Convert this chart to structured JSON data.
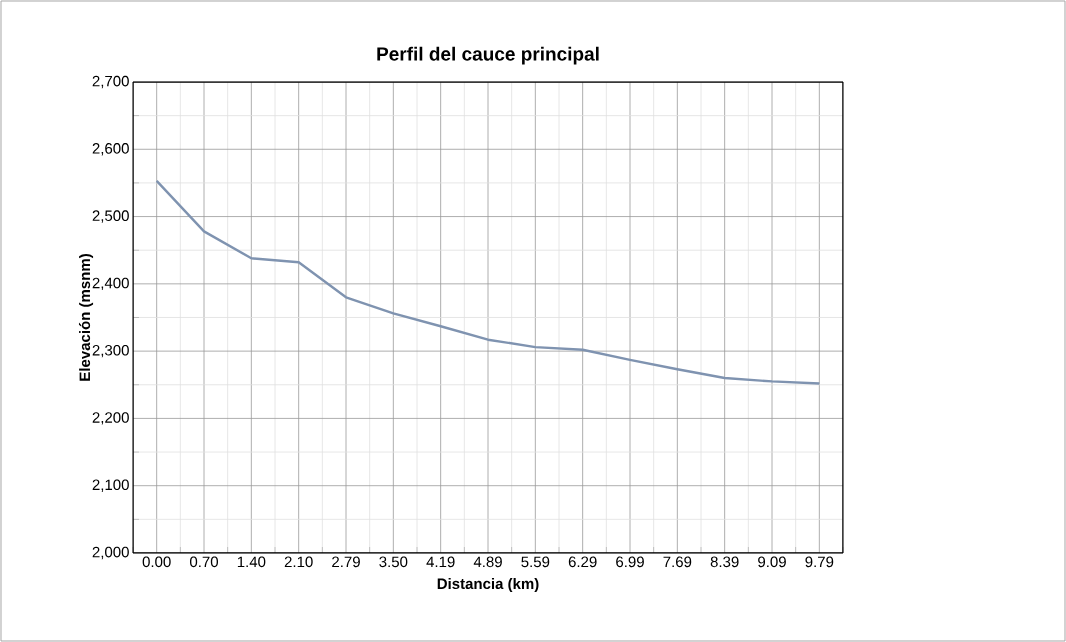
{
  "chart_data": {
    "type": "line",
    "title": "Perfil del cauce principal",
    "xlabel": "Distancia (km)",
    "ylabel": "Elevación (msnm)",
    "categories": [
      "0.00",
      "0.70",
      "1.40",
      "2.10",
      "2.79",
      "3.50",
      "4.19",
      "4.89",
      "5.59",
      "6.29",
      "6.99",
      "7.69",
      "8.39",
      "9.09",
      "9.79"
    ],
    "series": [
      {
        "color": "#7f93b0",
        "values": [
          2553,
          2478,
          2438,
          2432,
          2380,
          2356,
          2337,
          2317,
          2306,
          2302,
          2287,
          2273,
          2260,
          2255,
          2252
        ]
      }
    ],
    "ylim": [
      2000,
      2700
    ],
    "yticks": [
      {
        "value": 2000,
        "label": "2,000"
      },
      {
        "value": 2100,
        "label": "2,100"
      },
      {
        "value": 2200,
        "label": "2,200"
      },
      {
        "value": 2300,
        "label": "2,300"
      },
      {
        "value": 2400,
        "label": "2,400"
      },
      {
        "value": 2500,
        "label": "2,500"
      },
      {
        "value": 2600,
        "label": "2,600"
      },
      {
        "value": 2700,
        "label": "2,700"
      }
    ],
    "grid": true,
    "marker": "none",
    "line_style": "solid"
  }
}
